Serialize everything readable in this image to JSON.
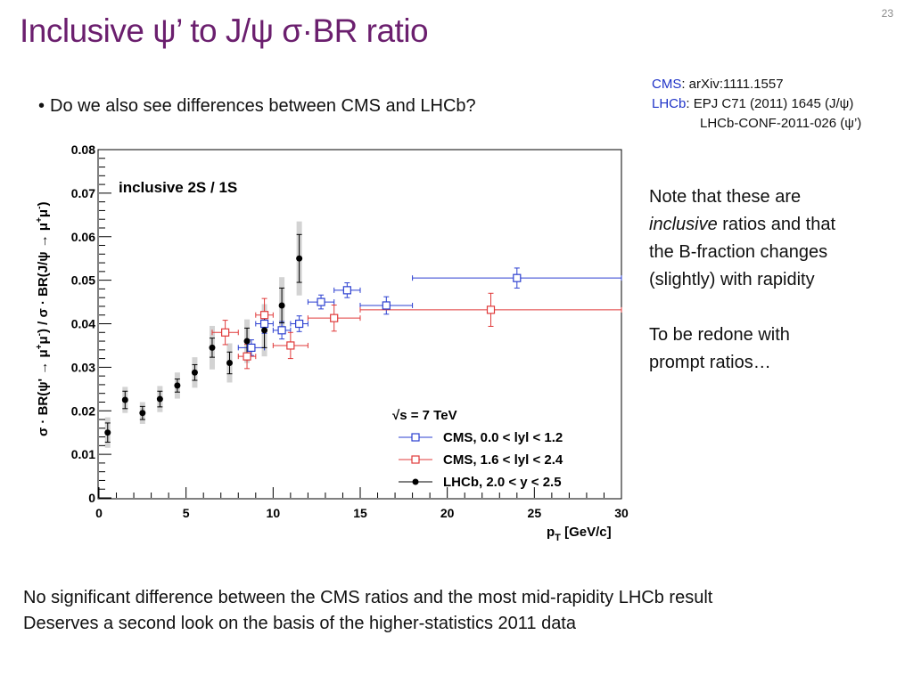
{
  "slide": {
    "title": "Inclusive ψ’ to J/ψ σ·BR ratio",
    "number": "23",
    "bullet_marker": "•",
    "bullet": "Do we also see differences between CMS and LHCb?",
    "refs": {
      "cms_key": "CMS",
      "cms_text": ": arXiv:1111.1557",
      "lhcb_key": "LHCb",
      "lhcb_text": ": EPJ C71 (2011) 1645 (J/ψ)",
      "lhcb_text2": "LHCb-CONF-2011-026 (ψ’)"
    },
    "note": {
      "line1": "Note that these are",
      "line2_em": "inclusive",
      "line2_rest": " ratios and that",
      "line3": "the B-fraction changes",
      "line4": "(slightly) with rapidity",
      "line5": "To be redone with",
      "line6": "prompt ratios…"
    },
    "bottom": {
      "line1": "No significant difference between the CMS ratios and the most mid-rapidity LHCb result",
      "line2": "Deserves a second look on the basis of the higher-statistics 2011 data"
    }
  },
  "chart_data": {
    "type": "scatter",
    "xlabel": "p_T [GeV/c]",
    "ylabel": "σ · BR(ψ' → μ⁺μ⁻) / σ · BR(J/ψ → μ⁺μ⁻)",
    "xlim": [
      0,
      30
    ],
    "ylim": [
      0,
      0.08
    ],
    "x_ticks": [
      "0",
      "5",
      "10",
      "15",
      "20",
      "25",
      "30"
    ],
    "y_ticks": [
      "0",
      "0.01",
      "0.02",
      "0.03",
      "0.04",
      "0.05",
      "0.06",
      "0.07",
      "0.08"
    ],
    "annotation": "inclusive 2S / 1S",
    "legend_title": "√s = 7 TeV",
    "legend_position": "bottom-right",
    "colors": {
      "cms_central": "#2b3fd0",
      "cms_forward": "#e03a3a",
      "lhcb": "#000000",
      "syst_band": "#d3d3d3"
    },
    "series": [
      {
        "name": "CMS, 0.0 < lyl < 1.2",
        "marker": "open-square",
        "points": [
          {
            "x": 8.75,
            "y": 0.0345,
            "xlo": 8.0,
            "xhi": 9.5,
            "err": 0.0018
          },
          {
            "x": 9.5,
            "y": 0.04,
            "xlo": 9.0,
            "xhi": 10.0,
            "err": 0.0022
          },
          {
            "x": 10.5,
            "y": 0.0385,
            "xlo": 10.0,
            "xhi": 11.0,
            "err": 0.002
          },
          {
            "x": 11.5,
            "y": 0.04,
            "xlo": 11.0,
            "xhi": 12.0,
            "err": 0.0018
          },
          {
            "x": 12.75,
            "y": 0.045,
            "xlo": 12.0,
            "xhi": 13.5,
            "err": 0.0016
          },
          {
            "x": 14.25,
            "y": 0.0477,
            "xlo": 13.5,
            "xhi": 15.0,
            "err": 0.0017
          },
          {
            "x": 16.5,
            "y": 0.0442,
            "xlo": 15.0,
            "xhi": 18.0,
            "err": 0.002
          },
          {
            "x": 24.0,
            "y": 0.0505,
            "xlo": 18.0,
            "xhi": 30.0,
            "err": 0.0023
          }
        ]
      },
      {
        "name": "CMS, 1.6 < lyl < 2.4",
        "marker": "open-square",
        "points": [
          {
            "x": 7.25,
            "y": 0.038,
            "xlo": 6.5,
            "xhi": 8.0,
            "err": 0.0028
          },
          {
            "x": 8.5,
            "y": 0.0325,
            "xlo": 8.0,
            "xhi": 9.0,
            "err": 0.0028
          },
          {
            "x": 9.5,
            "y": 0.042,
            "xlo": 9.0,
            "xhi": 10.0,
            "err": 0.0038
          },
          {
            "x": 11.0,
            "y": 0.035,
            "xlo": 10.0,
            "xhi": 12.0,
            "err": 0.003
          },
          {
            "x": 13.5,
            "y": 0.0413,
            "xlo": 12.0,
            "xhi": 15.0,
            "err": 0.003
          },
          {
            "x": 22.5,
            "y": 0.0432,
            "xlo": 15.0,
            "xhi": 30.0,
            "err": 0.0038
          }
        ]
      },
      {
        "name": "LHCb, 2.0 < y < 2.5",
        "marker": "filled-circle",
        "points": [
          {
            "x": 0.5,
            "y": 0.015,
            "err": 0.0022,
            "syst": 0.0035
          },
          {
            "x": 1.5,
            "y": 0.0225,
            "err": 0.002,
            "syst": 0.003
          },
          {
            "x": 2.5,
            "y": 0.0195,
            "err": 0.0015,
            "syst": 0.0025
          },
          {
            "x": 3.5,
            "y": 0.0227,
            "err": 0.0018,
            "syst": 0.003
          },
          {
            "x": 4.5,
            "y": 0.0258,
            "err": 0.0015,
            "syst": 0.003
          },
          {
            "x": 5.5,
            "y": 0.0288,
            "err": 0.0018,
            "syst": 0.0035
          },
          {
            "x": 6.5,
            "y": 0.0345,
            "err": 0.0022,
            "syst": 0.005
          },
          {
            "x": 7.5,
            "y": 0.031,
            "err": 0.0025,
            "syst": 0.0045
          },
          {
            "x": 8.5,
            "y": 0.036,
            "err": 0.003,
            "syst": 0.005
          },
          {
            "x": 9.5,
            "y": 0.0385,
            "err": 0.004,
            "syst": 0.006
          },
          {
            "x": 10.5,
            "y": 0.0442,
            "err": 0.004,
            "syst": 0.0065
          },
          {
            "x": 11.5,
            "y": 0.055,
            "err": 0.0055,
            "syst": 0.0085
          }
        ]
      }
    ]
  }
}
